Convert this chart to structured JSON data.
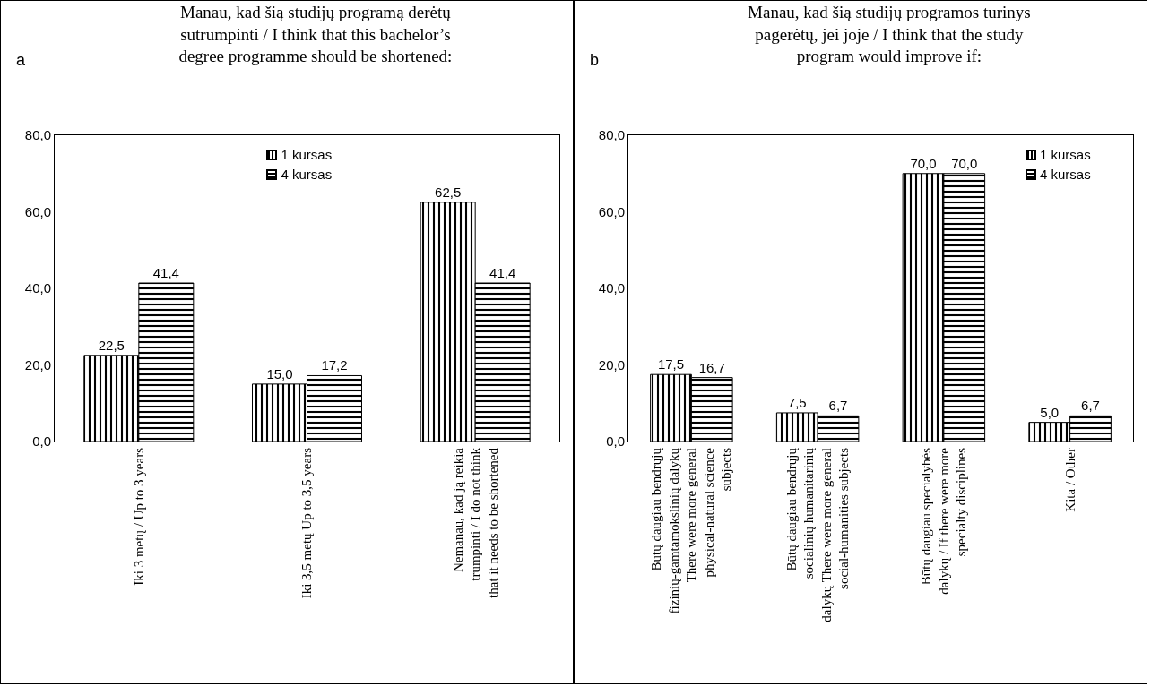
{
  "chart_data": [
    {
      "type": "bar",
      "title": "Manau, kad šią studijų programą derėtų sutrumpinti / I think that this bachelor’s degree programme should be shortened:",
      "annotations": [
        "a"
      ],
      "categories": [
        "Iki 3 metų / Up to 3 years",
        "Iki 3,5 metų Up to 3,5 years",
        "Nemanau, kad ją reikia trumpinti / I do not think that it needs to be shortened"
      ],
      "series": [
        {
          "name": "1 kursas",
          "color": "#000000",
          "values": [
            22.5,
            15.0,
            62.5
          ],
          "value_labels": [
            "22,5",
            "15,0",
            "62,5"
          ]
        },
        {
          "name": "4 kursas",
          "color": "#000000",
          "values": [
            41.4,
            17.2,
            41.4
          ],
          "value_labels": [
            "41,4",
            "17,2",
            "41,4"
          ]
        }
      ],
      "ylim": [
        0,
        80
      ],
      "yticks": [
        {
          "value": 0,
          "label": "0,0"
        },
        {
          "value": 20,
          "label": "20,0"
        },
        {
          "value": 40,
          "label": "40,0"
        },
        {
          "value": 60,
          "label": "60,0"
        },
        {
          "value": 80,
          "label": "80,0"
        }
      ],
      "grid": false,
      "legend": "top"
    },
    {
      "type": "bar",
      "title": "Manau, kad šią studijų programos turinys pagerėtų, jei joje / I think that the study program would improve if:",
      "annotations": [
        "b"
      ],
      "categories": [
        "Būtų daugiau bendrųjų fizinių-gamtamokslinių dalykų There were more general physical-natural science subjects",
        "Būtų daugiau bendrųjų socialinių humanitarinių dalykų There were more general social-humanities subjects",
        "Būtų daugiau specialybės dalykų / If there were more specialty disciplines",
        "Kita / Other"
      ],
      "series": [
        {
          "name": "1 kursas",
          "color": "#000000",
          "values": [
            17.5,
            7.5,
            70.0,
            5.0
          ],
          "value_labels": [
            "17,5",
            "7,5",
            "70,0",
            "5,0"
          ]
        },
        {
          "name": "4 kursas",
          "color": "#000000",
          "values": [
            16.7,
            6.7,
            70.0,
            6.7
          ],
          "value_labels": [
            "16,7",
            "6,7",
            "70,0",
            "6,7"
          ]
        }
      ],
      "ylim": [
        0,
        80
      ],
      "yticks": [
        {
          "value": 0,
          "label": "0,0"
        },
        {
          "value": 20,
          "label": "20,0"
        },
        {
          "value": 40,
          "label": "40,0"
        },
        {
          "value": 60,
          "label": "60,0"
        },
        {
          "value": 80,
          "label": "80,0"
        }
      ],
      "grid": false,
      "legend": "top right"
    }
  ]
}
